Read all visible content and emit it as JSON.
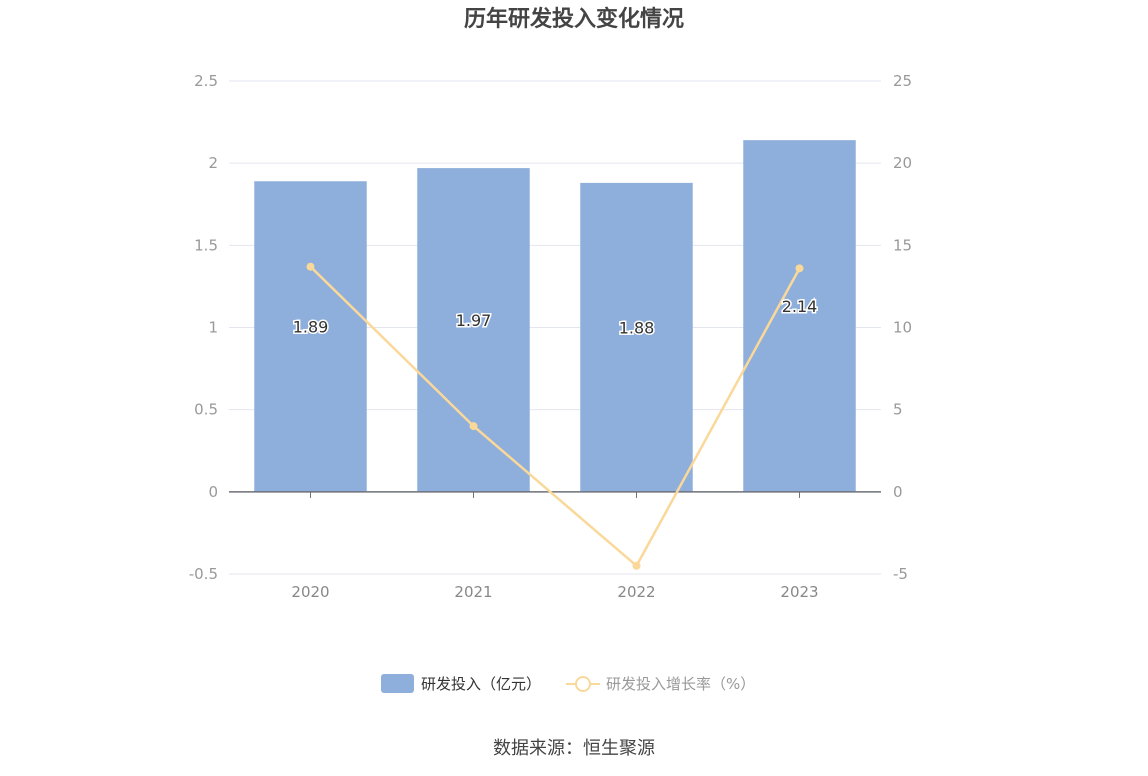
{
  "chart_data": {
    "type": "bar",
    "title": "历年研发投入变化情况",
    "categories": [
      "2020",
      "2021",
      "2022",
      "2023"
    ],
    "series": [
      {
        "name": "研发投入（亿元）",
        "type": "bar",
        "axis": "left",
        "values": [
          1.89,
          1.97,
          1.88,
          2.14
        ],
        "color": "#8eaedb",
        "labels": [
          "1.89",
          "1.97",
          "1.88",
          "2.14"
        ]
      },
      {
        "name": "研发投入增长率（%）",
        "type": "line",
        "axis": "right",
        "values": [
          13.7,
          4.0,
          -4.5,
          13.6
        ],
        "color": "#fad89a"
      }
    ],
    "y_left": {
      "min": -0.5,
      "max": 2.5,
      "ticks": [
        "-0.5",
        "0",
        "0.5",
        "1",
        "1.5",
        "2",
        "2.5"
      ]
    },
    "y_right": {
      "min": -5,
      "max": 25,
      "ticks": [
        "-5",
        "0",
        "5",
        "10",
        "15",
        "20",
        "25"
      ]
    },
    "grid": true,
    "legend_position": "bottom"
  },
  "source": "数据来源：恒生聚源",
  "colors": {
    "grid": "#e3e6ef",
    "axis": "#6e7079",
    "tick_text": "#999999"
  }
}
